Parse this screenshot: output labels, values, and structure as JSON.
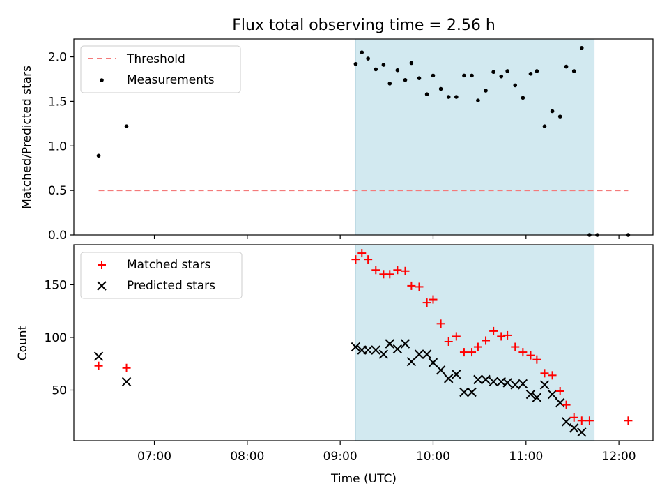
{
  "title": "Flux total observing time = 2.56 h",
  "chart_data": [
    {
      "type": "scatter",
      "ylabel": "Matched/Predicted stars",
      "xlim": [
        "06:08",
        "12:22"
      ],
      "ylim": [
        0,
        2.2
      ],
      "yticks": [
        "0.0",
        "0.5",
        "1.0",
        "1.5",
        "2.0"
      ],
      "observing_window": {
        "x_start": "09:10",
        "x_end": "11:44",
        "color": "#d2e9f0"
      },
      "threshold": {
        "name": "Threshold",
        "y": 0.5,
        "x_start": "06:24",
        "x_end": "12:06",
        "color": "#f47a7a",
        "style": "dashed"
      },
      "series": [
        {
          "name": "Measurements",
          "marker": "dot",
          "color": "#000000",
          "points": [
            [
              "06:24",
              0.89
            ],
            [
              "06:42",
              1.22
            ],
            [
              "09:10",
              1.92
            ],
            [
              "09:14",
              2.05
            ],
            [
              "09:18",
              1.98
            ],
            [
              "09:23",
              1.86
            ],
            [
              "09:28",
              1.91
            ],
            [
              "09:32",
              1.7
            ],
            [
              "09:37",
              1.85
            ],
            [
              "09:42",
              1.74
            ],
            [
              "09:46",
              1.93
            ],
            [
              "09:51",
              1.76
            ],
            [
              "09:56",
              1.58
            ],
            [
              "10:00",
              1.79
            ],
            [
              "10:05",
              1.64
            ],
            [
              "10:10",
              1.55
            ],
            [
              "10:15",
              1.55
            ],
            [
              "10:20",
              1.79
            ],
            [
              "10:25",
              1.79
            ],
            [
              "10:29",
              1.51
            ],
            [
              "10:34",
              1.62
            ],
            [
              "10:39",
              1.83
            ],
            [
              "10:44",
              1.78
            ],
            [
              "10:48",
              1.84
            ],
            [
              "10:53",
              1.68
            ],
            [
              "10:58",
              1.54
            ],
            [
              "11:03",
              1.81
            ],
            [
              "11:07",
              1.84
            ],
            [
              "11:12",
              1.22
            ],
            [
              "11:17",
              1.39
            ],
            [
              "11:22",
              1.33
            ],
            [
              "11:26",
              1.89
            ],
            [
              "11:31",
              1.84
            ],
            [
              "11:36",
              2.1
            ],
            [
              "11:41",
              0.0
            ],
            [
              "11:46",
              0.0
            ],
            [
              "12:06",
              0.0
            ]
          ]
        }
      ],
      "legend": {
        "position": "top-left",
        "entries": [
          "Threshold",
          "Measurements"
        ]
      }
    },
    {
      "type": "scatter",
      "xlabel": "Time (UTC)",
      "ylabel": "Count",
      "xlim": [
        "06:08",
        "12:22"
      ],
      "ylim": [
        2,
        188
      ],
      "yticks": [
        "50",
        "100",
        "150"
      ],
      "xticks": [
        "07:00",
        "08:00",
        "09:00",
        "10:00",
        "11:00",
        "12:00"
      ],
      "observing_window": {
        "x_start": "09:10",
        "x_end": "11:44",
        "color": "#d2e9f0"
      },
      "series": [
        {
          "name": "Matched stars",
          "marker": "plus",
          "color": "#ff0000",
          "points": [
            [
              "06:24",
              73
            ],
            [
              "06:42",
              71
            ],
            [
              "09:10",
              174
            ],
            [
              "09:14",
              180
            ],
            [
              "09:18",
              174
            ],
            [
              "09:23",
              164
            ],
            [
              "09:28",
              160
            ],
            [
              "09:32",
              160
            ],
            [
              "09:37",
              164
            ],
            [
              "09:42",
              163
            ],
            [
              "09:46",
              149
            ],
            [
              "09:51",
              148
            ],
            [
              "09:56",
              133
            ],
            [
              "10:00",
              136
            ],
            [
              "10:05",
              113
            ],
            [
              "10:10",
              96
            ],
            [
              "10:15",
              101
            ],
            [
              "10:20",
              86
            ],
            [
              "10:25",
              86
            ],
            [
              "10:29",
              91
            ],
            [
              "10:34",
              97
            ],
            [
              "10:39",
              106
            ],
            [
              "10:44",
              101
            ],
            [
              "10:48",
              102
            ],
            [
              "10:53",
              91
            ],
            [
              "10:58",
              86
            ],
            [
              "11:03",
              83
            ],
            [
              "11:07",
              79
            ],
            [
              "11:12",
              66
            ],
            [
              "11:17",
              64
            ],
            [
              "11:22",
              49
            ],
            [
              "11:26",
              36
            ],
            [
              "11:31",
              24
            ],
            [
              "11:36",
              21
            ],
            [
              "11:41",
              21
            ],
            [
              "12:06",
              21
            ]
          ]
        },
        {
          "name": "Predicted stars",
          "marker": "x",
          "color": "#000000",
          "points": [
            [
              "06:24",
              82
            ],
            [
              "06:42",
              58
            ],
            [
              "09:10",
              91
            ],
            [
              "09:14",
              88
            ],
            [
              "09:18",
              88
            ],
            [
              "09:23",
              88
            ],
            [
              "09:28",
              84
            ],
            [
              "09:32",
              94
            ],
            [
              "09:37",
              89
            ],
            [
              "09:42",
              94
            ],
            [
              "09:46",
              77
            ],
            [
              "09:51",
              84
            ],
            [
              "09:56",
              84
            ],
            [
              "10:00",
              76
            ],
            [
              "10:05",
              69
            ],
            [
              "10:10",
              61
            ],
            [
              "10:15",
              65
            ],
            [
              "10:20",
              48
            ],
            [
              "10:25",
              48
            ],
            [
              "10:29",
              60
            ],
            [
              "10:34",
              60
            ],
            [
              "10:39",
              58
            ],
            [
              "10:44",
              58
            ],
            [
              "10:48",
              57
            ],
            [
              "10:53",
              55
            ],
            [
              "10:58",
              56
            ],
            [
              "11:03",
              46
            ],
            [
              "11:07",
              43
            ],
            [
              "11:12",
              55
            ],
            [
              "11:17",
              46
            ],
            [
              "11:22",
              38
            ],
            [
              "11:26",
              20
            ],
            [
              "11:31",
              14
            ],
            [
              "11:36",
              10
            ]
          ]
        }
      ],
      "legend": {
        "position": "top-left",
        "entries": [
          "Matched stars",
          "Predicted stars"
        ]
      }
    }
  ]
}
